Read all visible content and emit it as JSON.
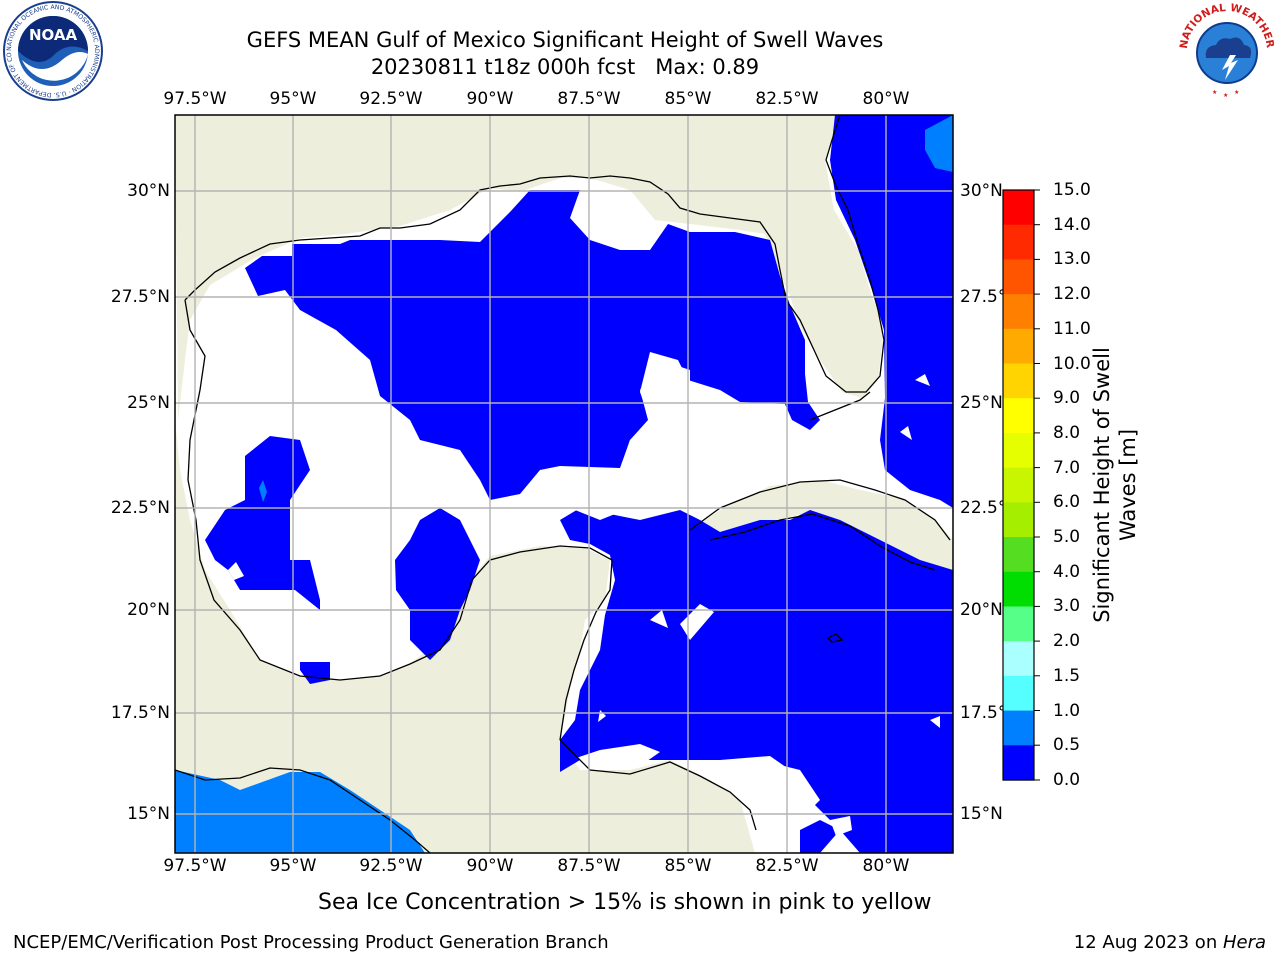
{
  "title": {
    "line1": "GEFS MEAN Gulf of Mexico Significant Height of Swell Waves",
    "line2": "20230811 t18z 000h fcst   Max: 0.89"
  },
  "map": {
    "lon_labels": [
      "97.5°W",
      "95°W",
      "92.5°W",
      "90°W",
      "87.5°W",
      "85°W",
      "82.5°W",
      "80°W"
    ],
    "lat_labels": [
      "30°N",
      "27.5°N",
      "25°N",
      "22.5°N",
      "20°N",
      "17.5°N",
      "15°N"
    ],
    "colors": {
      "land": "#eeeedc",
      "ocean_0_05": "#0000ff",
      "ocean_05_10": "#0080ff",
      "grid": "#b3b3b3",
      "coast": "#000000"
    }
  },
  "colorbar": {
    "label": "Significant Height of Swell Waves [m]",
    "label_line1": "Significant Height of Swell",
    "label_line2": "Waves [m]",
    "ticks": [
      "15.0",
      "14.0",
      "13.0",
      "12.0",
      "11.0",
      "10.0",
      "9.0",
      "8.0",
      "7.0",
      "6.0",
      "5.0",
      "4.0",
      "3.0",
      "2.0",
      "1.5",
      "1.0",
      "0.5",
      "0.0"
    ],
    "colors": [
      "#ff0000",
      "#ff2a00",
      "#ff5400",
      "#ff8000",
      "#ffaa00",
      "#ffd400",
      "#ffff00",
      "#e6ff00",
      "#c8f500",
      "#a6ee00",
      "#55dd22",
      "#00dd00",
      "#00ee00",
      "#55ff88",
      "#aaffff",
      "#55ffff",
      "#00ffff",
      "#00ffff",
      "#0080ff",
      "#0000ff"
    ]
  },
  "footnote": "Sea Ice Concentration > 15% is shown in pink to yellow",
  "credit_left": "NCEP/EMC/Verification Post Processing Product Generation Branch",
  "credit_right_date": "12 Aug 2023 on ",
  "credit_right_host": "Hera",
  "logos": {
    "noaa": {
      "text": "NOAA",
      "ring_text": "NATIONAL OCEANIC AND ATMOSPHERIC ADMINISTRATION · U.S. DEPARTMENT OF COMMERCE"
    },
    "nws": {
      "ring_text": "NATIONAL WEATHER SERVICE"
    }
  }
}
